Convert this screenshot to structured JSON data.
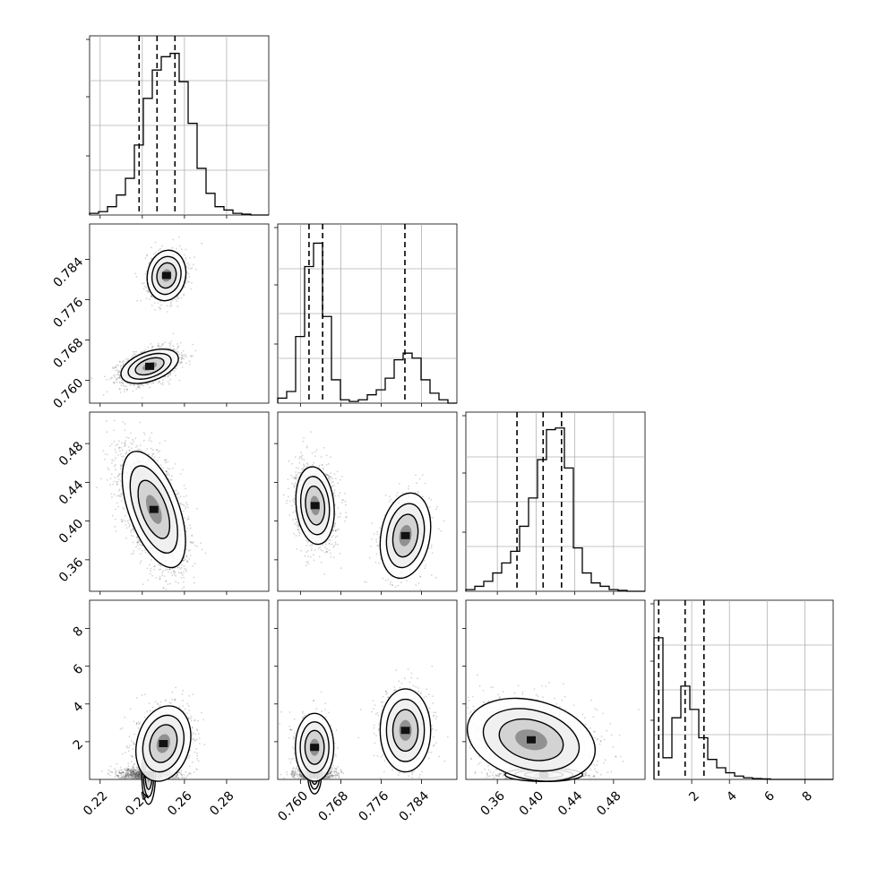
{
  "chart_data": {
    "type": "corner",
    "grid": true,
    "params": [
      {
        "range": [
          0.215,
          0.3
        ],
        "ticks": [
          0.22,
          0.24,
          0.26,
          0.28
        ],
        "tick_labels": [
          "0.22",
          "0.24",
          "0.26",
          "0.28"
        ],
        "quantiles": [
          0.2385,
          0.247,
          0.2555
        ]
      },
      {
        "range": [
          0.7555,
          0.791
        ],
        "ticks": [
          0.76,
          0.768,
          0.776,
          0.784
        ],
        "tick_labels": [
          "0.760",
          "0.768",
          "0.776",
          "0.784"
        ],
        "quantiles": [
          0.7617,
          0.7644,
          0.7807
        ]
      },
      {
        "range": [
          0.3275,
          0.5125
        ],
        "ticks": [
          0.36,
          0.4,
          0.44,
          0.48
        ],
        "tick_labels": [
          "0.36",
          "0.40",
          "0.44",
          "0.48"
        ],
        "quantiles": [
          0.3803,
          0.4073,
          0.4263
        ]
      },
      {
        "range": [
          0.0,
          9.5
        ],
        "ticks": [
          2,
          4,
          6,
          8
        ],
        "tick_labels": [
          "2",
          "4",
          "6",
          "8"
        ],
        "quantiles": [
          0.25,
          1.65,
          2.65
        ]
      }
    ],
    "histograms": [
      {
        "bins": [
          0.215,
          0.3
        ],
        "counts": [
          0.01,
          0.02,
          0.05,
          0.12,
          0.22,
          0.42,
          0.7,
          0.87,
          0.95,
          0.97,
          0.8,
          0.55,
          0.28,
          0.13,
          0.05,
          0.03,
          0.01,
          0.005,
          0,
          0
        ]
      },
      {
        "bins": [
          0.7555,
          0.791
        ],
        "counts": [
          0.03,
          0.07,
          0.4,
          0.82,
          0.96,
          0.52,
          0.14,
          0.02,
          0.01,
          0.02,
          0.05,
          0.08,
          0.15,
          0.26,
          0.3,
          0.27,
          0.14,
          0.06,
          0.02,
          0
        ]
      },
      {
        "bins": [
          0.3275,
          0.5125
        ],
        "counts": [
          0.01,
          0.03,
          0.06,
          0.11,
          0.17,
          0.24,
          0.39,
          0.56,
          0.79,
          0.97,
          0.98,
          0.74,
          0.26,
          0.11,
          0.05,
          0.03,
          0.01,
          0.005,
          0,
          0
        ]
      },
      {
        "bins": [
          0.0,
          9.5
        ],
        "counts": [
          0.85,
          0.13,
          0.37,
          0.56,
          0.42,
          0.25,
          0.12,
          0.07,
          0.04,
          0.02,
          0.01,
          0.005,
          0.003,
          0,
          0,
          0,
          0,
          0,
          0,
          0
        ]
      }
    ],
    "blobs": [
      {
        "pair": [
          1,
          0
        ],
        "components": [
          {
            "c": [
              0.2435,
              0.7628
            ],
            "s": [
              0.0068,
              0.0017
            ],
            "r": 0.45,
            "w": 0.72
          },
          {
            "c": [
              0.2515,
              0.7808
            ],
            "s": [
              0.0046,
              0.0025
            ],
            "r": 0.1,
            "w": 0.28
          }
        ]
      },
      {
        "pair": [
          2,
          0
        ],
        "components": [
          {
            "c": [
              0.2455,
              0.412
            ],
            "s": [
              0.0075,
              0.03
            ],
            "r": -0.55,
            "w": 1.0
          }
        ]
      },
      {
        "pair": [
          2,
          1
        ],
        "components": [
          {
            "c": [
              0.7629,
              0.416
            ],
            "s": [
              0.0019,
              0.02
            ],
            "r": -0.15,
            "w": 0.72
          },
          {
            "c": [
              0.7808,
              0.385
            ],
            "s": [
              0.0025,
              0.022
            ],
            "r": 0.2,
            "w": 0.28
          }
        ]
      },
      {
        "pair": [
          3,
          0
        ],
        "components": [
          {
            "c": [
              0.243,
              0.25
            ],
            "s": [
              0.007,
              0.18
            ],
            "r": 0.0,
            "w": 0.52
          },
          {
            "c": [
              0.25,
              1.9
            ],
            "s": [
              0.0065,
              1.0
            ],
            "r": 0.2,
            "w": 0.48
          }
        ]
      },
      {
        "pair": [
          3,
          1
        ],
        "components": [
          {
            "c": [
              0.7628,
              0.25
            ],
            "s": [
              0.0019,
              0.18
            ],
            "r": 0.0,
            "w": 0.4
          },
          {
            "c": [
              0.7628,
              1.7
            ],
            "s": [
              0.0019,
              0.9
            ],
            "r": 0.0,
            "w": 0.25
          },
          {
            "c": [
              0.7808,
              2.6
            ],
            "s": [
              0.0025,
              1.1
            ],
            "r": 0.0,
            "w": 0.35
          }
        ]
      },
      {
        "pair": [
          3,
          2
        ],
        "components": [
          {
            "c": [
              0.408,
              0.25
            ],
            "s": [
              0.02,
              0.18
            ],
            "r": 0.0,
            "w": 0.5
          },
          {
            "c": [
              0.395,
              2.1
            ],
            "s": [
              0.033,
              1.1
            ],
            "r": -0.25,
            "w": 0.5
          }
        ]
      }
    ]
  }
}
